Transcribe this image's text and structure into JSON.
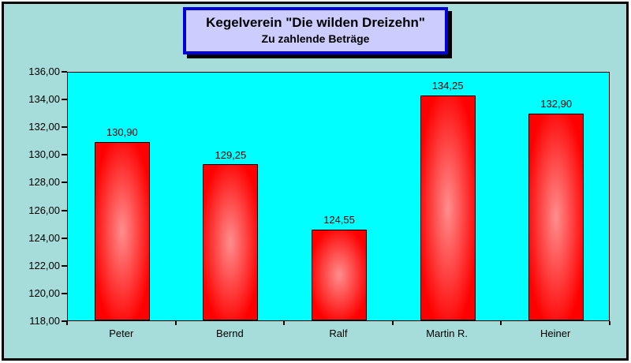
{
  "chart_data": {
    "type": "bar",
    "title": "Kegelverein \"Die wilden Dreizehn\"",
    "subtitle": "Zu zahlende Beträge",
    "categories": [
      "Peter",
      "Bernd",
      "Ralf",
      "Martin R.",
      "Heiner"
    ],
    "values": [
      130.9,
      129.25,
      124.55,
      134.25,
      132.9
    ],
    "value_labels": [
      "130,90",
      "129,25",
      "124,55",
      "134,25",
      "132,90"
    ],
    "ylim": [
      118,
      136
    ],
    "ytick_step": 2,
    "ytick_labels": [
      "118,00",
      "120,00",
      "122,00",
      "124,00",
      "126,00",
      "128,00",
      "130,00",
      "132,00",
      "134,00",
      "136,00"
    ],
    "grid": false,
    "legend": false,
    "colors": {
      "chart_background": "#a6dcda",
      "plot_background": "#00ffff",
      "bar_edge": "#ff0000",
      "bar_center": "#ff8e8e",
      "bar_border": "#000000",
      "title_box_background": "#ccccff",
      "title_box_border": "#0000db",
      "title_box_shadow": "#000000",
      "text": "#000000",
      "outer_border": "#000000"
    }
  }
}
